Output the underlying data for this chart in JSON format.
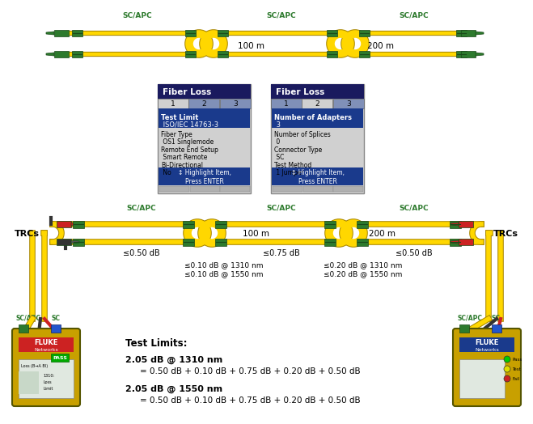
{
  "bg_color": "#ffffff",
  "fiber_color": "#FFD700",
  "fiber_outline": "#ccaa00",
  "connector_color": "#2d7a2d",
  "connector_dark": "#1a4a1a",
  "label_color": "#2d7a2d",
  "red_color": "#cc2222",
  "black_cable": "#333333",
  "blue_plug": "#2244aa",
  "dark_navy": "#1a1a5e",
  "blue_highlight": "#1a3a8c",
  "cable_length1": "100 m",
  "cable_length2": "200 m",
  "loss_connector1": "≤0.50 dB",
  "loss_connector2": "≤0.75 dB",
  "loss_connector3": "≤0.50 dB",
  "loss_splice1_1310": "≤0.10 dB @ 1310 nm",
  "loss_splice1_1550": "≤0.10 dB @ 1550 nm",
  "loss_splice2_1310": "≤0.20 dB @ 1310 nm",
  "loss_splice2_1550": "≤0.20 dB @ 1550 nm",
  "test_limit_title": "Test Limits:",
  "test_1310": "2.05 dB @ 1310 nm",
  "test_1310_eq": "= 0.50 dB + 0.10 dB + 0.75 dB + 0.20 dB + 0.50 dB",
  "test_1550": "2.05 dB @ 1550 nm",
  "test_1550_eq": "= 0.50 dB + 0.10 dB + 0.75 dB + 0.20 dB + 0.50 dB",
  "trc_label": "TRCs",
  "sc_apc": "SC/APC",
  "sc": "SC",
  "panel1_title": "Fiber Loss",
  "panel1_tabs": [
    "1",
    "2",
    "3"
  ],
  "panel1_active_tab": 0,
  "panel1_highlight_line1": "Test Limit",
  "panel1_highlight_line2": " ISO/IEC 14763-3",
  "panel1_items": [
    [
      "Fiber Type",
      " OS1 Singlemode"
    ],
    [
      "Remote End Setup",
      " Smart Remote"
    ],
    [
      "Bi-Directional",
      " No"
    ]
  ],
  "panel1_footer": "↕ Highlight Item,\nPress ENTER",
  "panel2_title": "Fiber Loss",
  "panel2_tabs": [
    "1",
    "2",
    "3"
  ],
  "panel2_active_tab": 1,
  "panel2_highlight_line1": "Number of Adapters",
  "panel2_highlight_line2": " 3",
  "panel2_items": [
    [
      "Number of Splices",
      " 0"
    ],
    [
      "Connector Type",
      " SC"
    ],
    [
      "Test Method",
      " 1 Jumper"
    ]
  ],
  "panel2_footer": "↕ Highlight Item,\nPress ENTER"
}
